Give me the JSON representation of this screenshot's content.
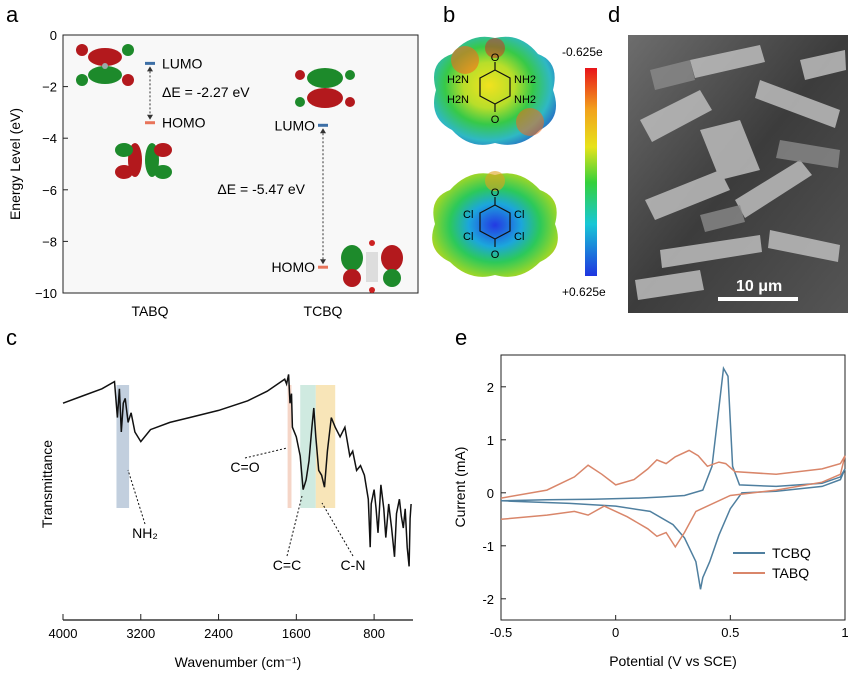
{
  "panels": {
    "a": "a",
    "b": "b",
    "c": "c",
    "d": "d",
    "e": "e"
  },
  "chart_data": [
    {
      "panel": "a",
      "type": "scatter",
      "ylabel": "Energy Level (eV)",
      "ylim": [
        -10,
        0
      ],
      "yticks": [
        "0",
        "−2",
        "−4",
        "−6",
        "−8",
        "−10"
      ],
      "yticks_values": [
        0,
        -2,
        -4,
        -6,
        -8,
        -10
      ],
      "categories": [
        "TABQ",
        "TCBQ"
      ],
      "levels": [
        {
          "molecule": "TABQ",
          "LUMO": -1.1,
          "HOMO": -3.4,
          "gap_label": "ΔE = -2.27 eV"
        },
        {
          "molecule": "TCBQ",
          "LUMO": -3.5,
          "HOMO": -9.0,
          "gap_label": "ΔE = -5.47 eV"
        }
      ],
      "level_labels": {
        "lumo": "LUMO",
        "homo": "HOMO"
      },
      "colors": {
        "lumo": "#3d6fa6",
        "homo": "#e8745a"
      }
    },
    {
      "panel": "b",
      "type": "heatmap",
      "colorbar_top": "-0.625e",
      "colorbar_bottom": "+0.625e",
      "molecule_top": {
        "substituent": "NH2",
        "labels": [
          "H2N",
          "NH2",
          "H2N",
          "NH2"
        ],
        "carbonyl": "O"
      },
      "molecule_bottom": {
        "substituent": "Cl",
        "labels": [
          "Cl",
          "Cl",
          "Cl",
          "Cl"
        ],
        "carbonyl": "O"
      }
    },
    {
      "panel": "c",
      "type": "line",
      "xlabel": "Wavenumber (cm⁻¹)",
      "ylabel": "Transmittance",
      "xlim": [
        4000,
        400
      ],
      "xticks": [
        "4000",
        "3200",
        "2400",
        "1600",
        "800"
      ],
      "xticks_values": [
        4000,
        3200,
        2400,
        1600,
        800
      ],
      "annotations": [
        {
          "text": "NH₂",
          "x": 3380
        },
        {
          "text": "C=O",
          "x": 1670
        },
        {
          "text": "C=C",
          "x": 1520
        },
        {
          "text": "C-N",
          "x": 1310
        }
      ],
      "highlight_bands": [
        {
          "from": 3450,
          "to": 3320,
          "color": "#aebfd3"
        },
        {
          "from": 1690,
          "to": 1650,
          "color": "#f2c7b4"
        },
        {
          "from": 1560,
          "to": 1400,
          "color": "#bfe3d6"
        },
        {
          "from": 1400,
          "to": 1200,
          "color": "#f6dca0"
        }
      ],
      "series": [
        {
          "values_xy": [
            [
              4000,
              82
            ],
            [
              3800,
              85
            ],
            [
              3600,
              88
            ],
            [
              3470,
              91
            ],
            [
              3440,
              76
            ],
            [
              3420,
              88
            ],
            [
              3400,
              70
            ],
            [
              3380,
              82
            ],
            [
              3360,
              84
            ],
            [
              3330,
              74
            ],
            [
              3300,
              78
            ],
            [
              3260,
              70
            ],
            [
              3200,
              66
            ],
            [
              3100,
              71
            ],
            [
              2900,
              74
            ],
            [
              2700,
              76
            ],
            [
              2400,
              79
            ],
            [
              2100,
              83
            ],
            [
              1900,
              87
            ],
            [
              1720,
              92
            ],
            [
              1700,
              90
            ],
            [
              1680,
              94
            ],
            [
              1665,
              82
            ],
            [
              1650,
              86
            ],
            [
              1640,
              72
            ],
            [
              1600,
              68
            ],
            [
              1560,
              60
            ],
            [
              1530,
              46
            ],
            [
              1500,
              50
            ],
            [
              1470,
              58
            ],
            [
              1440,
              72
            ],
            [
              1420,
              80
            ],
            [
              1400,
              68
            ],
            [
              1370,
              54
            ],
            [
              1340,
              52
            ],
            [
              1310,
              47
            ],
            [
              1280,
              62
            ],
            [
              1240,
              76
            ],
            [
              1200,
              72
            ],
            [
              1150,
              68
            ],
            [
              1100,
              72
            ],
            [
              1050,
              60
            ],
            [
              1020,
              62
            ],
            [
              980,
              54
            ],
            [
              940,
              56
            ],
            [
              900,
              52
            ],
            [
              860,
              42
            ],
            [
              840,
              22
            ],
            [
              830,
              40
            ],
            [
              800,
              46
            ],
            [
              780,
              38
            ],
            [
              760,
              28
            ],
            [
              730,
              48
            ],
            [
              700,
              38
            ],
            [
              680,
              26
            ],
            [
              650,
              40
            ],
            [
              620,
              30
            ],
            [
              590,
              18
            ],
            [
              570,
              36
            ],
            [
              540,
              42
            ],
            [
              520,
              35
            ],
            [
              500,
              30
            ],
            [
              480,
              38
            ],
            [
              460,
              22
            ],
            [
              440,
              14
            ],
            [
              430,
              34
            ],
            [
              420,
              40
            ]
          ]
        }
      ]
    },
    {
      "panel": "d",
      "type": "table",
      "scale_bar": "10 μm"
    },
    {
      "panel": "e",
      "type": "line",
      "xlabel": "Potential (V vs SCE)",
      "ylabel": "Current (mA)",
      "xlim": [
        -0.5,
        1.0
      ],
      "ylim": [
        -2.4,
        2.6
      ],
      "xticks": [
        "-0.5",
        "0",
        "0.5",
        "1"
      ],
      "xticks_values": [
        -0.5,
        0,
        0.5,
        1
      ],
      "yticks": [
        "2",
        "1",
        "0",
        "-1",
        "-2"
      ],
      "yticks_values": [
        2,
        1,
        0,
        -1,
        -2
      ],
      "legend": "bottom-right",
      "series": [
        {
          "name": "TCBQ",
          "color": "#4f7f9f",
          "values_xy": [
            [
              -0.5,
              -0.15
            ],
            [
              -0.3,
              -0.13
            ],
            [
              -0.1,
              -0.12
            ],
            [
              0.1,
              -0.1
            ],
            [
              0.2,
              -0.08
            ],
            [
              0.3,
              -0.05
            ],
            [
              0.38,
              0.05
            ],
            [
              0.42,
              0.5
            ],
            [
              0.45,
              1.6
            ],
            [
              0.47,
              2.35
            ],
            [
              0.49,
              2.2
            ],
            [
              0.51,
              0.5
            ],
            [
              0.54,
              0.15
            ],
            [
              0.7,
              0.12
            ],
            [
              0.9,
              0.18
            ],
            [
              0.98,
              0.3
            ],
            [
              1.0,
              0.45
            ],
            [
              0.98,
              0.25
            ],
            [
              0.9,
              0.12
            ],
            [
              0.7,
              0.03
            ],
            [
              0.55,
              0.0
            ],
            [
              0.5,
              -0.3
            ],
            [
              0.45,
              -0.8
            ],
            [
              0.41,
              -1.3
            ],
            [
              0.38,
              -1.6
            ],
            [
              0.37,
              -1.82
            ],
            [
              0.35,
              -1.3
            ],
            [
              0.3,
              -0.85
            ],
            [
              0.25,
              -0.6
            ],
            [
              0.15,
              -0.35
            ],
            [
              0.0,
              -0.25
            ],
            [
              -0.2,
              -0.2
            ],
            [
              -0.5,
              -0.15
            ]
          ]
        },
        {
          "name": "TABQ",
          "color": "#d9866a",
          "values_xy": [
            [
              -0.5,
              -0.1
            ],
            [
              -0.3,
              0.05
            ],
            [
              -0.18,
              0.3
            ],
            [
              -0.12,
              0.52
            ],
            [
              -0.06,
              0.35
            ],
            [
              0.0,
              0.15
            ],
            [
              0.08,
              0.25
            ],
            [
              0.14,
              0.45
            ],
            [
              0.18,
              0.62
            ],
            [
              0.22,
              0.55
            ],
            [
              0.26,
              0.68
            ],
            [
              0.32,
              0.8
            ],
            [
              0.36,
              0.7
            ],
            [
              0.4,
              0.5
            ],
            [
              0.45,
              0.58
            ],
            [
              0.48,
              0.55
            ],
            [
              0.52,
              0.4
            ],
            [
              0.7,
              0.35
            ],
            [
              0.9,
              0.45
            ],
            [
              0.98,
              0.55
            ],
            [
              1.0,
              0.7
            ],
            [
              0.98,
              0.35
            ],
            [
              0.9,
              0.2
            ],
            [
              0.7,
              0.05
            ],
            [
              0.5,
              -0.05
            ],
            [
              0.35,
              -0.35
            ],
            [
              0.3,
              -0.75
            ],
            [
              0.26,
              -1.02
            ],
            [
              0.22,
              -0.75
            ],
            [
              0.18,
              -0.82
            ],
            [
              0.14,
              -0.68
            ],
            [
              0.05,
              -0.45
            ],
            [
              -0.05,
              -0.25
            ],
            [
              -0.12,
              -0.42
            ],
            [
              -0.18,
              -0.35
            ],
            [
              -0.3,
              -0.42
            ],
            [
              -0.5,
              -0.5
            ]
          ]
        }
      ]
    }
  ]
}
